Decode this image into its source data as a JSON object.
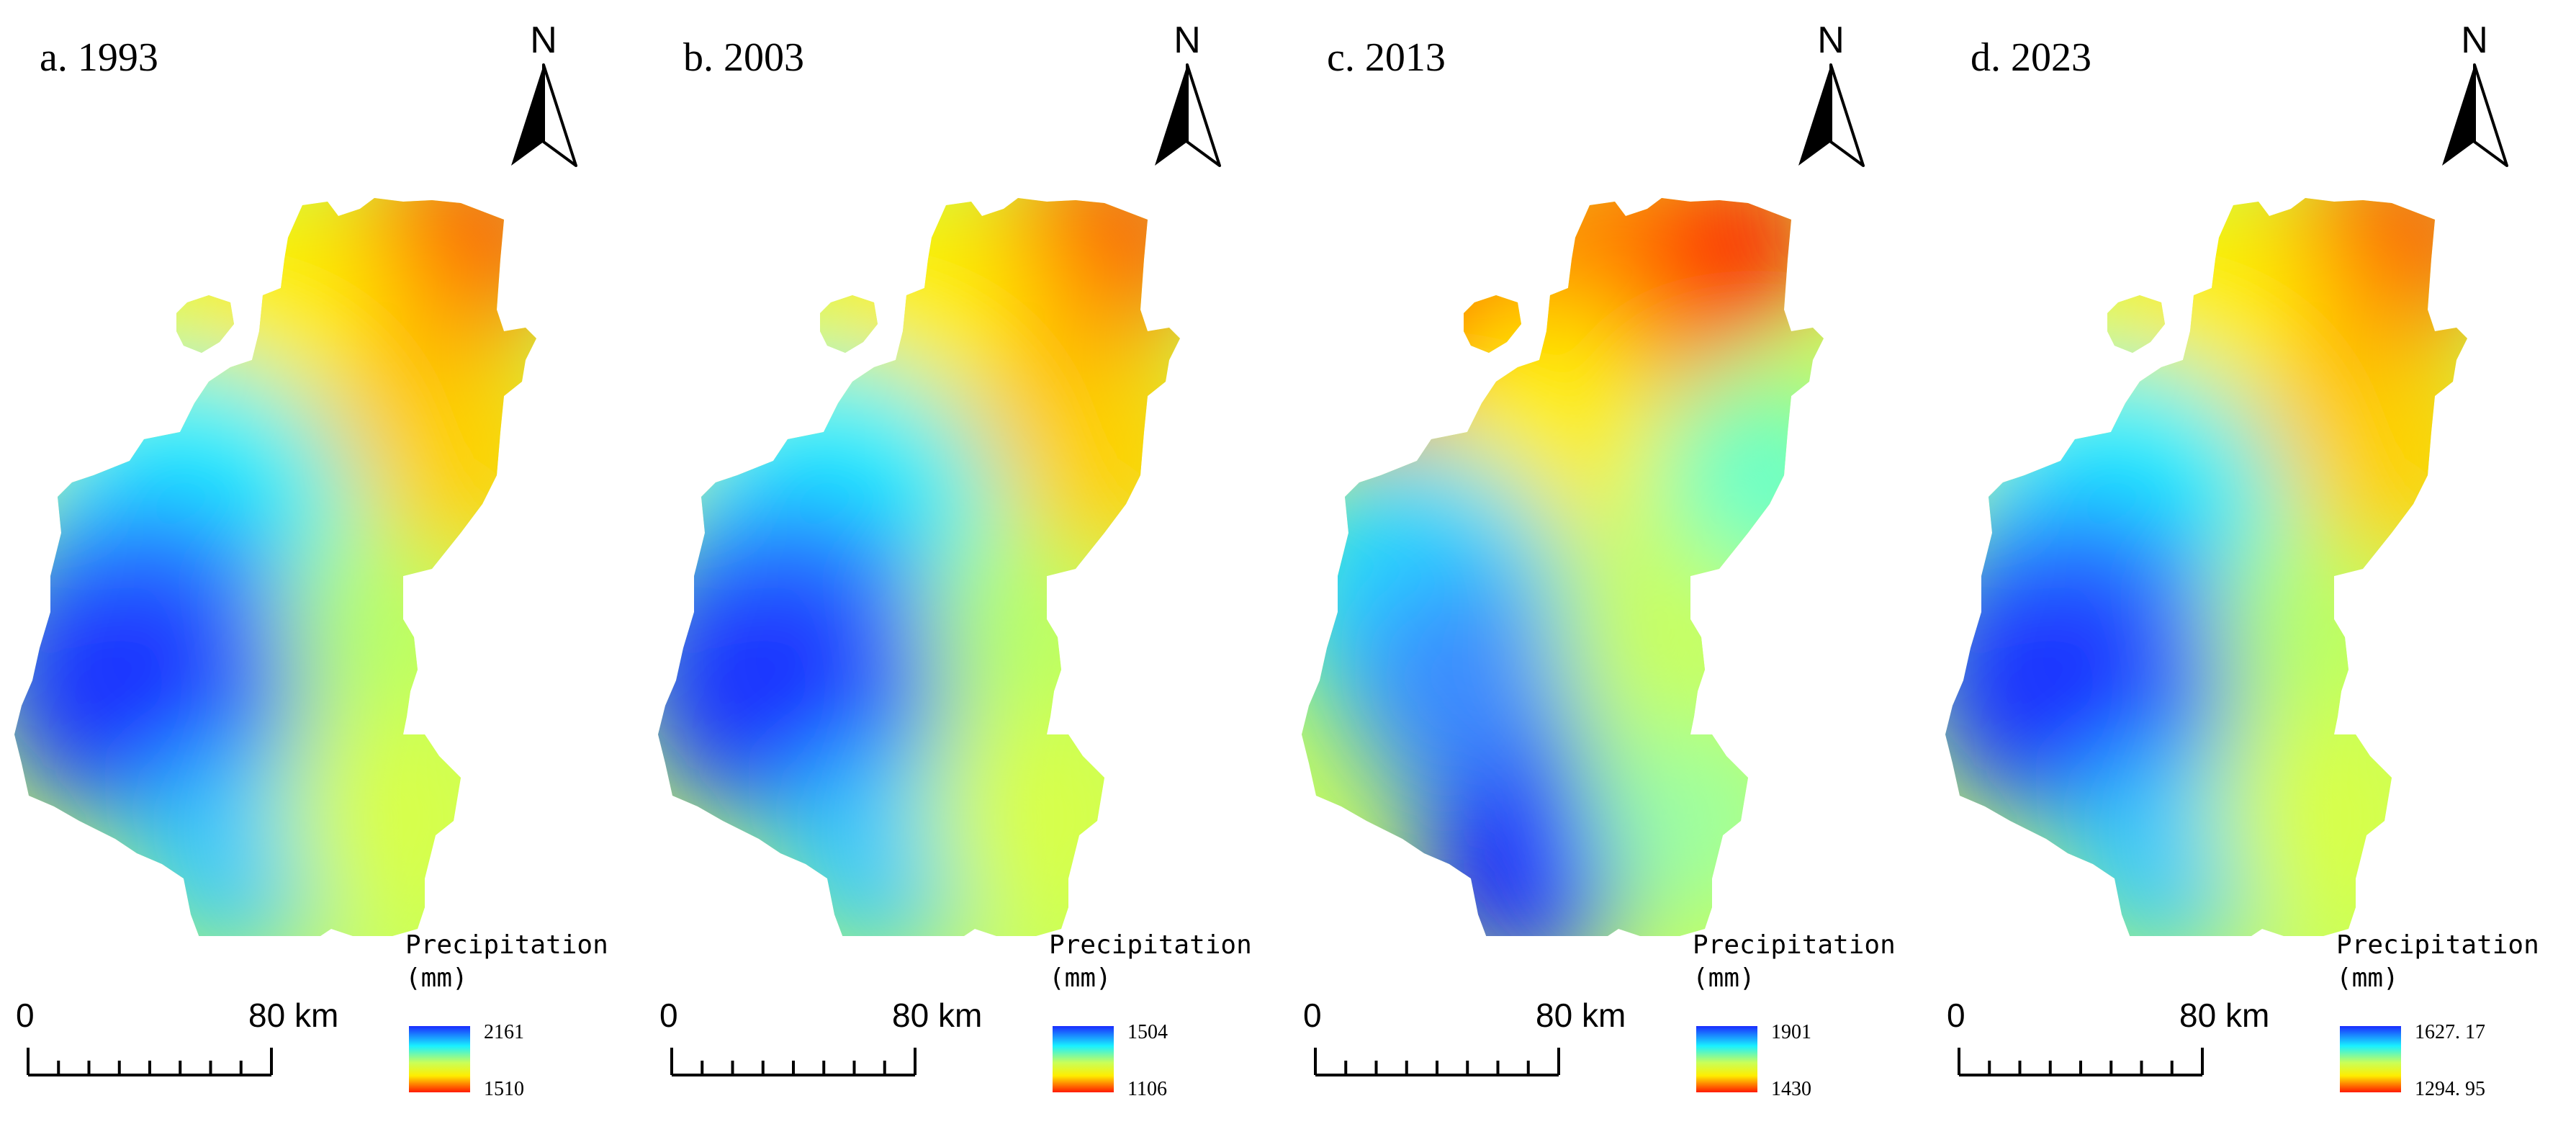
{
  "north_label": "N",
  "legend_title_line1": "Precipitation",
  "legend_title_line2": "(mm)",
  "scale_bar": {
    "zero": "0",
    "distance": "80 km"
  },
  "colors": {
    "high_precip": "#1a2cff",
    "mid_high": "#19f0ff",
    "mid": "#c8ff5a",
    "mid_low": "#ffee00",
    "low_precip": "#ff1a00"
  },
  "panels": [
    {
      "title": "a. 1993",
      "legend_max": "2161",
      "legend_min": "1510",
      "pattern": "sw_wet_ne_dry"
    },
    {
      "title": "b. 2003",
      "legend_max": "1504",
      "legend_min": "1106",
      "pattern": "sw_wet_ne_dry"
    },
    {
      "title": "c. 2013",
      "legend_max": "1901",
      "legend_min": "1430",
      "pattern": "south_wet_north_dry"
    },
    {
      "title": "d. 2023",
      "legend_max": "1627. 17",
      "legend_min": "1294. 95",
      "pattern": "sw_wet_ne_dry"
    }
  ]
}
